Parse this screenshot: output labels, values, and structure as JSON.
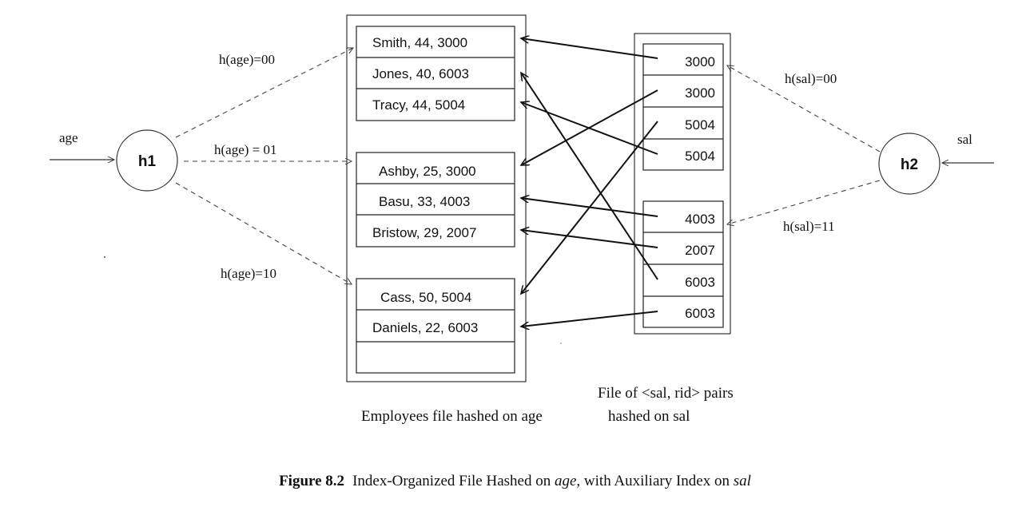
{
  "hash_functions": {
    "h1": {
      "label": "h1",
      "input": "age"
    },
    "h2": {
      "label": "h2",
      "input": "sal"
    }
  },
  "edge_labels": {
    "age_00": "h(age)=00",
    "age_01": "h(age) = 01",
    "age_10": "h(age)=10",
    "sal_00": "h(sal)=00",
    "sal_11": "h(sal)=11"
  },
  "employee_buckets": [
    {
      "records": [
        "Smith, 44, 3000",
        "Jones, 40, 6003",
        "Tracy, 44, 5004"
      ]
    },
    {
      "records": [
        "Ashby, 25, 3000",
        "Basu, 33, 4003",
        "Bristow, 29, 2007"
      ]
    },
    {
      "records": [
        "Cass, 50, 5004",
        "Daniels, 22, 6003",
        ""
      ]
    }
  ],
  "sal_buckets": [
    {
      "entries": [
        "3000",
        "3000",
        "5004",
        "5004"
      ]
    },
    {
      "entries": [
        "4003",
        "2007",
        "6003",
        "6003"
      ]
    }
  ],
  "labels": {
    "sal_file_line1": "File of <sal, rid> pairs",
    "sal_file_line2": "hashed on sal",
    "emp_file": "Employees file hashed on age"
  },
  "caption": {
    "figure": "Figure 8.2",
    "part1": "Index-Organized File Hashed on ",
    "term1": "age",
    "part2": ", with Auxiliary Index on ",
    "term2": "sal"
  }
}
